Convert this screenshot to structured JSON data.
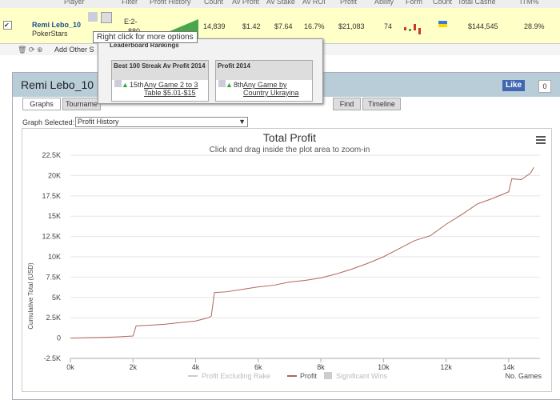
{
  "table": {
    "headers": [
      "Player",
      "Filter",
      "Profit History",
      "Count",
      "Av Profit",
      "Av Stake",
      "Av ROI",
      "Profit",
      "Ability",
      "Form",
      "Count",
      "Total Cashe",
      "ITM%"
    ],
    "row": {
      "player": "Remi Lebo_10",
      "site": "PokerStars",
      "filter": "E:2-",
      "filter2": "880",
      "count": "14,839",
      "av_profit": "$1.42",
      "av_stake": "$7.64",
      "av_roi": "16.7%",
      "profit": "$21,083",
      "ability": "74",
      "total_cashes": "$144,545",
      "itm": "28.9%"
    },
    "add_other": "Add Other S"
  },
  "tooltip": "Right click for more options",
  "rankings": {
    "title": "Leaderboard Rankings",
    "boxes": [
      {
        "title": "Best 100 Streak Av Profit 2014",
        "rank": "15th",
        "link": "Any Game 2 to 3 Table $5.01-$15"
      },
      {
        "title": "Profit 2014",
        "rank": "8th",
        "link": "Any Game by Country Ukrayina"
      }
    ]
  },
  "panel": {
    "title": "Remi Lebo_10 (F",
    "like": "Like",
    "like_count": "0",
    "tabs": [
      "Graphs",
      "Tourname",
      "Find",
      "Timeline"
    ],
    "graph_selected_label": "Graph Selected:",
    "graph_selected": "Profit History"
  },
  "chart_data": {
    "type": "line",
    "title": "Total Profit",
    "subtitle": "Click and drag inside the plot area to zoom-in",
    "y_label": "Cumulative Total (USD)",
    "x_label": "No. Games",
    "xlim": [
      0,
      15000
    ],
    "ylim": [
      -2500,
      22500
    ],
    "xticks": [
      {
        "value": 0,
        "label": "0k"
      },
      {
        "value": 2000,
        "label": "2k"
      },
      {
        "value": 4000,
        "label": "4k"
      },
      {
        "value": 6000,
        "label": "6k"
      },
      {
        "value": 8000,
        "label": "8k"
      },
      {
        "value": 10000,
        "label": "10k"
      },
      {
        "value": 12000,
        "label": "12k"
      },
      {
        "value": 14000,
        "label": "14k"
      }
    ],
    "yticks": [
      {
        "value": -2500,
        "label": "-2.5K"
      },
      0,
      {
        "value": 2500,
        "label": "2.5K"
      },
      {
        "value": 5000,
        "label": "5K"
      },
      {
        "value": 7500,
        "label": "7.5K"
      },
      {
        "value": 10000,
        "label": "10K"
      },
      {
        "value": 12500,
        "label": "12.5K"
      },
      {
        "value": 15000,
        "label": "15K"
      },
      {
        "value": 17500,
        "label": "17.5K"
      },
      {
        "value": 20000,
        "label": "20K"
      },
      {
        "value": 22500,
        "label": "22.5K"
      }
    ],
    "grid": true,
    "legend": [
      "Profit Excluding Rake",
      "Significant Wins"
    ],
    "series": [
      {
        "name": "Profit",
        "color": "#b0665a",
        "x": [
          0,
          500,
          1000,
          1500,
          2000,
          2100,
          2600,
          3000,
          3500,
          4000,
          4400,
          4500,
          4600,
          5000,
          5500,
          6000,
          6500,
          7000,
          7500,
          8000,
          8500,
          9000,
          9500,
          10000,
          10500,
          11000,
          11500,
          12000,
          12500,
          13000,
          13500,
          14000,
          14100,
          14400,
          14700,
          14800
        ],
        "values": [
          0,
          50,
          80,
          150,
          250,
          1500,
          1600,
          1700,
          1900,
          2100,
          2500,
          2700,
          5600,
          5700,
          6000,
          6300,
          6500,
          6900,
          7100,
          7400,
          7900,
          8500,
          9200,
          10000,
          11000,
          12000,
          12600,
          14000,
          15200,
          16500,
          17200,
          18000,
          19600,
          19500,
          20300,
          21000
        ]
      }
    ]
  }
}
